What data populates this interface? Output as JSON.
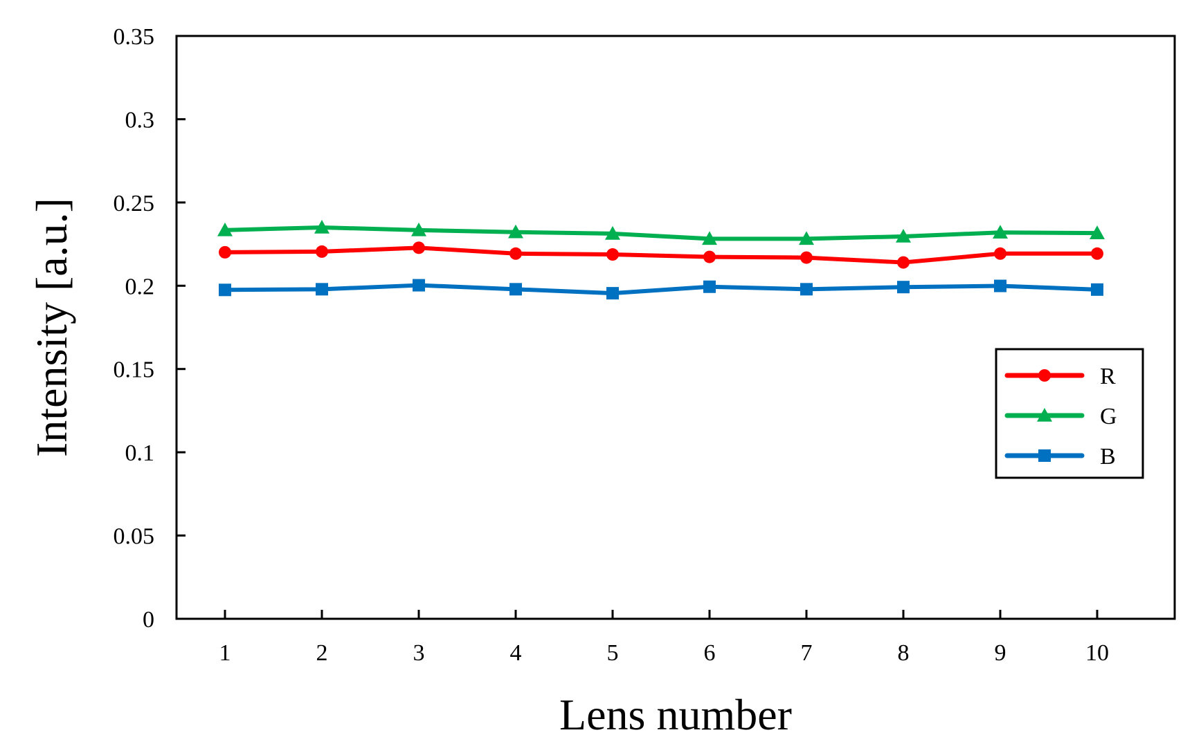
{
  "chart_data": {
    "type": "line",
    "title": "",
    "xlabel": "Lens number",
    "ylabel": "Intensity [a.u.]",
    "x": [
      1,
      2,
      3,
      4,
      5,
      6,
      7,
      8,
      9,
      10
    ],
    "x_tick_labels": [
      "1",
      "2",
      "3",
      "4",
      "5",
      "6",
      "7",
      "8",
      "9",
      "10"
    ],
    "xlim": [
      0.5,
      10.8
    ],
    "ylim": [
      0,
      0.35
    ],
    "y_ticks": [
      0,
      0.05,
      0.1,
      0.15,
      0.2,
      0.25,
      0.3,
      0.35
    ],
    "y_tick_labels": [
      "0",
      "0.05",
      "0.1",
      "0.15",
      "0.2",
      "0.25",
      "0.3",
      "0.35"
    ],
    "grid": false,
    "legend_position": "right",
    "series": [
      {
        "name": "R",
        "color": "#ff0000",
        "marker": "circle",
        "values": [
          0.2201,
          0.2205,
          0.2228,
          0.2193,
          0.2188,
          0.2173,
          0.2169,
          0.214,
          0.2193,
          0.2193
        ]
      },
      {
        "name": "G",
        "color": "#00b050",
        "marker": "triangle",
        "values": [
          0.2334,
          0.235,
          0.2334,
          0.2322,
          0.2313,
          0.2282,
          0.2282,
          0.2296,
          0.232,
          0.2316
        ]
      },
      {
        "name": "B",
        "color": "#0070c0",
        "marker": "square",
        "values": [
          0.1975,
          0.1979,
          0.2003,
          0.1979,
          0.1955,
          0.1994,
          0.1979,
          0.1992,
          0.1999,
          0.1977
        ]
      }
    ]
  }
}
